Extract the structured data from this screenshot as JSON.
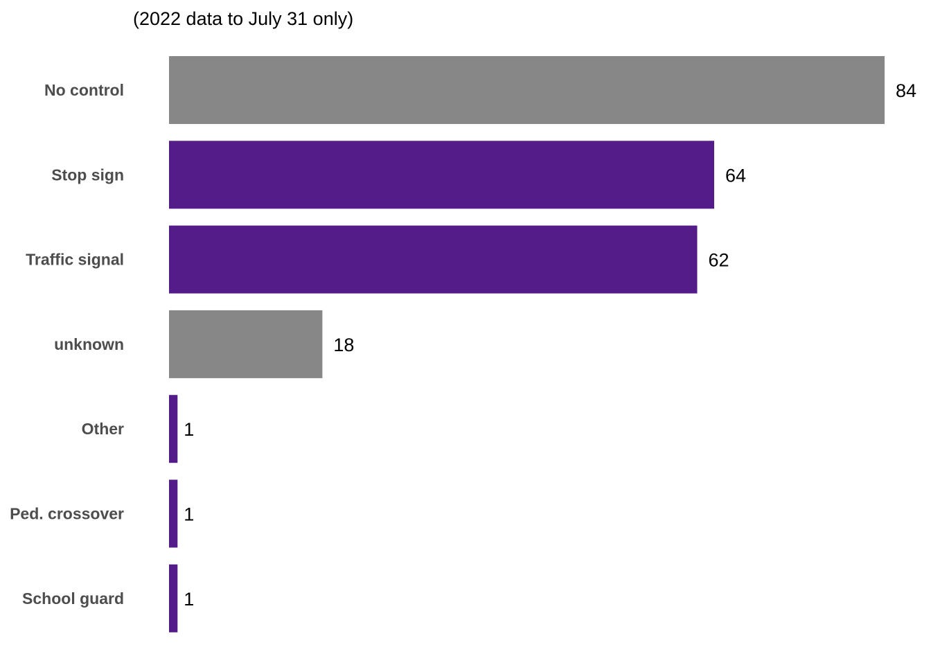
{
  "chart_data": {
    "type": "bar",
    "orientation": "horizontal",
    "subtitle": "(2022 data to July 31 only)",
    "title": "",
    "xlabel": "",
    "ylabel": "",
    "categories": [
      "No control",
      "Stop sign",
      "Traffic signal",
      "unknown",
      "Other",
      "Ped. crossover",
      "School guard"
    ],
    "values": [
      84,
      64,
      62,
      18,
      1,
      1,
      1
    ],
    "bar_colors": [
      "#878787",
      "#541c89",
      "#541c89",
      "#878787",
      "#541c89",
      "#541c89",
      "#541c89"
    ],
    "xlim": [
      0,
      84
    ],
    "grid": false,
    "legend": "none"
  }
}
